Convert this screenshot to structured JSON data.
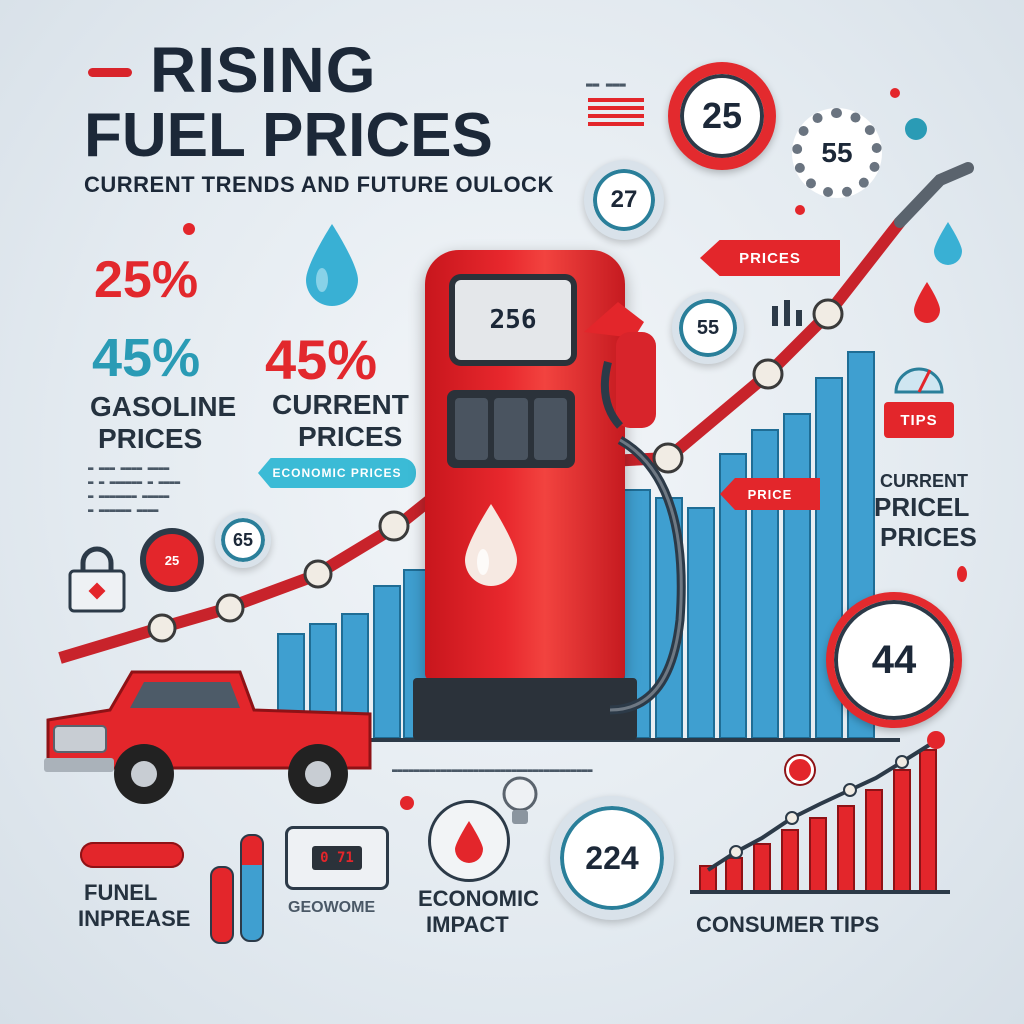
{
  "header": {
    "title_line1": "RISING",
    "title_line2": "FUEL PRICES",
    "subtitle": "CURRENT TRENDS AND FUTURE OULOCK"
  },
  "stats": {
    "pct_25": "25%",
    "pct_45_left": "45%",
    "pct_45_mid": "45%",
    "gasoline_label": "GASOLINE",
    "prices_label": "PRICES",
    "current_label": "CURRENT",
    "current_prices_label": "PRICES",
    "chip_text": "ECONOMIC PRICES"
  },
  "dials": {
    "top_red": "25",
    "top_gear": "55",
    "top_blue": "27",
    "mid_blue": "55",
    "small_left": "65",
    "right_big": "44",
    "bottom_center": "224"
  },
  "pump": {
    "display": "256",
    "fuel_color": "#e3262b"
  },
  "tags": {
    "prices_arrow": "PRICES",
    "price_arrow2": "PRICE",
    "tips_tag": "TIPS",
    "fine_left": "ECONOMIC"
  },
  "right_labels": {
    "small": "CURRENT",
    "line1": "PRICEL",
    "line2": "PRICES"
  },
  "bottom": {
    "label_left_1": "FUNEL",
    "label_left_2": "INPREASE",
    "label_geo": "GEOWOME",
    "label_econ_1": "ECONOMIC",
    "label_econ_2": "IMPACT",
    "label_consumer": "CONSUMER TIPS",
    "meter_readout": "0 71"
  },
  "colors": {
    "accent_red": "#e3262b",
    "accent_teal": "#2a9bb5",
    "bar_blue": "#3f9fd0",
    "dark_navy": "#1c2838"
  }
}
